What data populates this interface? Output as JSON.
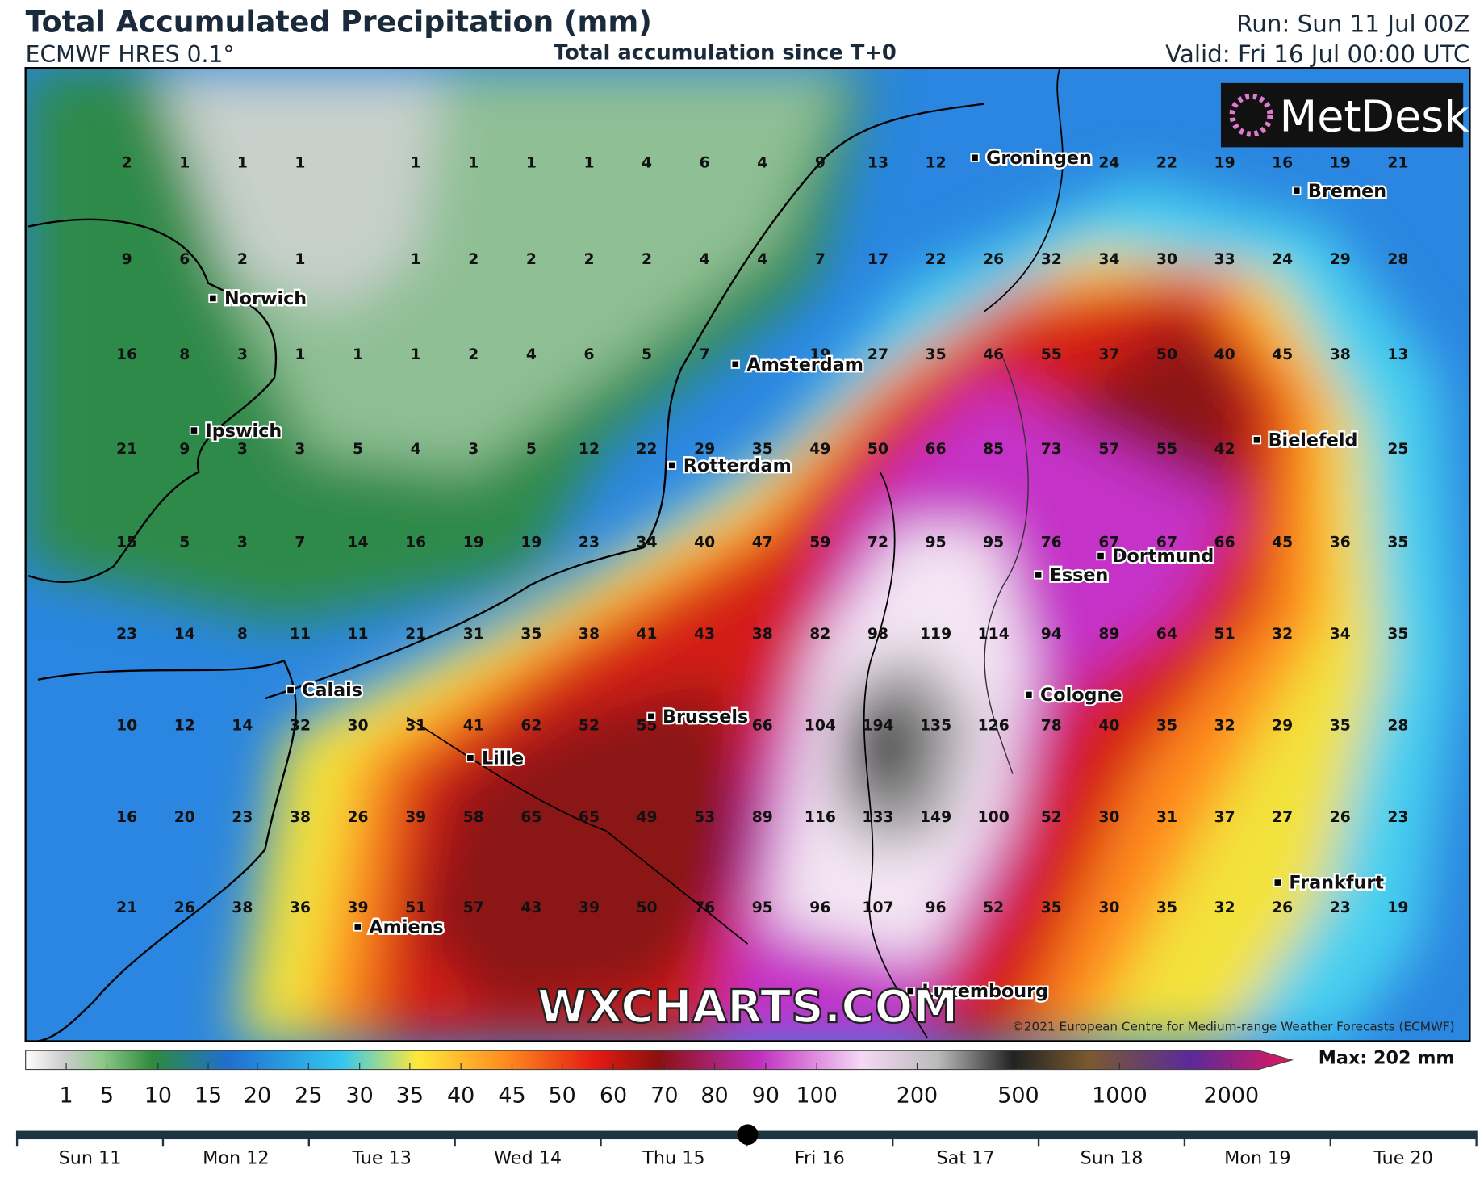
{
  "header": {
    "title": "Total Accumulated Precipitation (mm)",
    "model": "ECMWF HRES 0.1°",
    "subtitle": "Total accumulation since T+0",
    "run": "Run: Sun 11 Jul 00Z",
    "valid": "Valid: Fri 16 Jul 00:00 UTC"
  },
  "logo": "MetDesk",
  "grid_values": [
    [
      2,
      1,
      1,
      1,
      null,
      1,
      1,
      1,
      1,
      4,
      6,
      4,
      9,
      13,
      12,
      null,
      null,
      24,
      22,
      19,
      16,
      19,
      21
    ],
    [
      9,
      6,
      2,
      1,
      null,
      1,
      2,
      2,
      2,
      2,
      4,
      4,
      7,
      17,
      22,
      26,
      32,
      34,
      30,
      33,
      24,
      29,
      28
    ],
    [
      16,
      8,
      3,
      1,
      1,
      1,
      2,
      4,
      6,
      5,
      7,
      null,
      19,
      27,
      35,
      46,
      55,
      37,
      50,
      40,
      45,
      38,
      13
    ],
    [
      21,
      9,
      3,
      3,
      5,
      4,
      3,
      5,
      12,
      22,
      29,
      35,
      49,
      50,
      66,
      85,
      73,
      57,
      55,
      42,
      null,
      null,
      25
    ],
    [
      15,
      5,
      3,
      7,
      14,
      16,
      19,
      19,
      23,
      34,
      40,
      47,
      59,
      72,
      95,
      95,
      76,
      67,
      67,
      66,
      45,
      36,
      35
    ],
    [
      23,
      14,
      8,
      11,
      11,
      21,
      31,
      35,
      38,
      41,
      43,
      38,
      82,
      98,
      119,
      114,
      94,
      89,
      64,
      51,
      32,
      34,
      35
    ],
    [
      10,
      12,
      14,
      32,
      30,
      31,
      41,
      62,
      52,
      55,
      null,
      66,
      104,
      194,
      135,
      126,
      78,
      40,
      35,
      32,
      29,
      35,
      28
    ],
    [
      16,
      20,
      23,
      38,
      26,
      39,
      58,
      65,
      65,
      49,
      53,
      89,
      116,
      133,
      149,
      100,
      52,
      30,
      31,
      37,
      27,
      26,
      23
    ],
    [
      21,
      26,
      38,
      36,
      39,
      51,
      57,
      43,
      39,
      50,
      76,
      95,
      96,
      107,
      96,
      52,
      35,
      30,
      35,
      32,
      26,
      23,
      19
    ]
  ],
  "cities": [
    "Groningen",
    "Bremen",
    "Norwich",
    "Amsterdam",
    "Ipswich",
    "Rotterdam",
    "Bielefeld",
    "Dortmund",
    "Essen",
    "Calais",
    "Cologne",
    "Brussels",
    "Lille",
    "Frankfurt",
    "Amiens",
    "Luxembourg"
  ],
  "watermark": "WXCHARTS.COM",
  "copyright": "©2021 European Centre for Medium-range Weather Forecasts (ECMWF)",
  "colorbar": {
    "labels": [
      1,
      5,
      10,
      15,
      20,
      25,
      30,
      35,
      40,
      45,
      50,
      60,
      70,
      80,
      90,
      100,
      200,
      500,
      1000,
      2000
    ],
    "max_label": "Max: 202 mm"
  },
  "timeline": {
    "days": [
      "Sun 11",
      "Mon 12",
      "Tue 13",
      "Wed 14",
      "Thu 15",
      "Fri 16",
      "Sat 17",
      "Sun 18",
      "Mon 19",
      "Tue 20"
    ]
  }
}
